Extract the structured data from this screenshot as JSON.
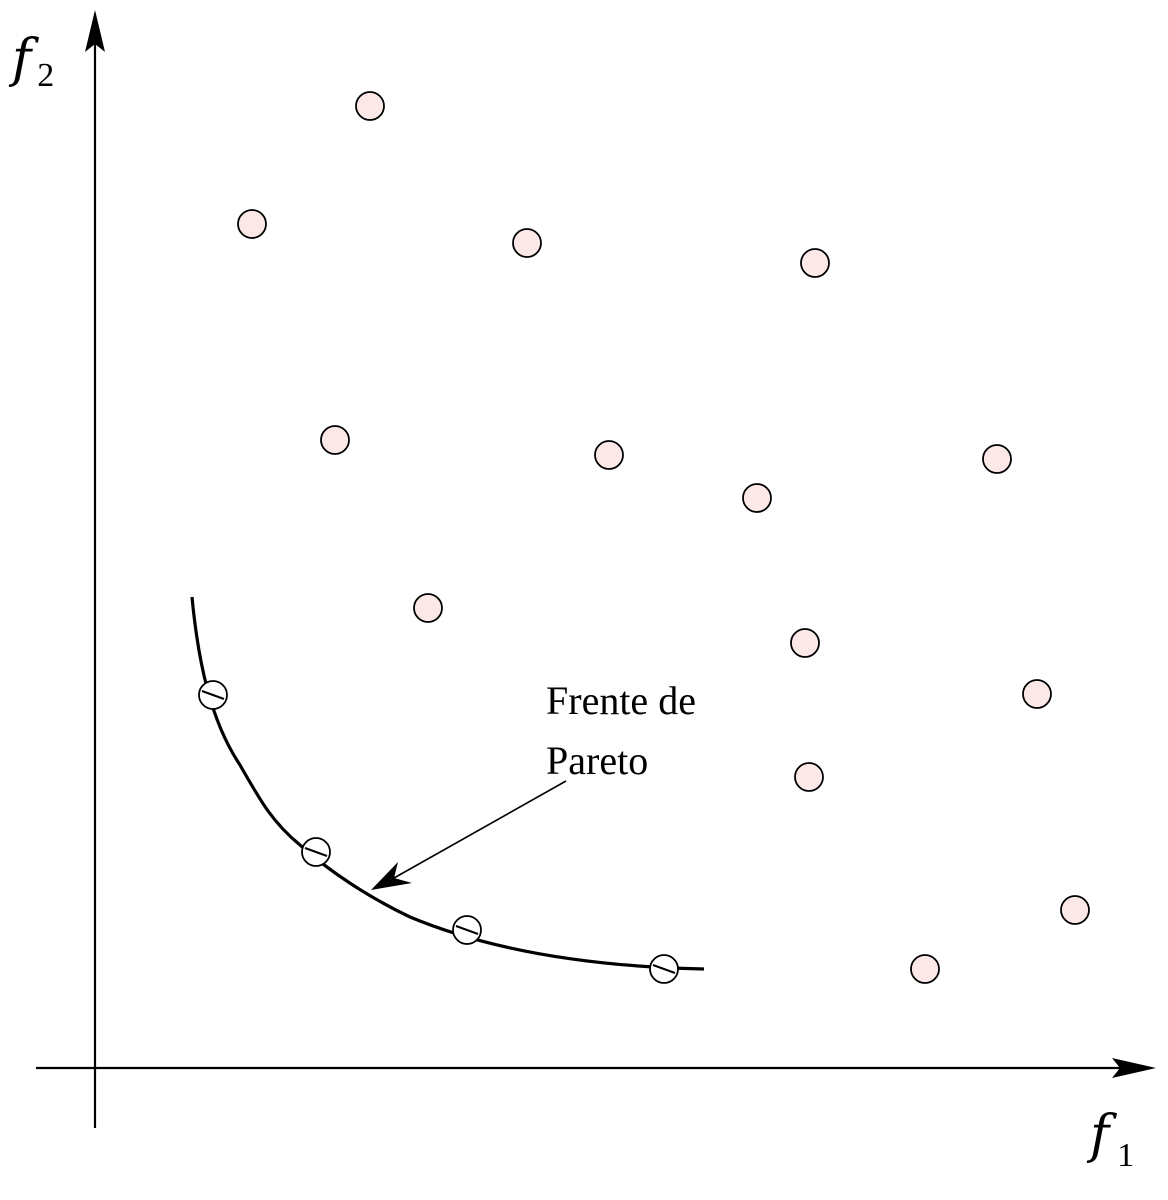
{
  "axes": {
    "x_label": "f",
    "x_subscript": "1",
    "y_label": "f",
    "y_subscript": "2"
  },
  "annotation": {
    "line1": "Frente de",
    "line2": "Pareto"
  },
  "colors": {
    "dominated_fill": "#fde8e8",
    "stroke": "#000000"
  },
  "points": {
    "dominated": [
      {
        "f1": 370,
        "f2": 106
      },
      {
        "f1": 252,
        "f2": 224
      },
      {
        "f1": 527,
        "f2": 243
      },
      {
        "f1": 815,
        "f2": 263
      },
      {
        "f1": 335,
        "f2": 440
      },
      {
        "f1": 609,
        "f2": 455
      },
      {
        "f1": 997,
        "f2": 459
      },
      {
        "f1": 757,
        "f2": 498
      },
      {
        "f1": 428,
        "f2": 608
      },
      {
        "f1": 805,
        "f2": 643
      },
      {
        "f1": 1037,
        "f2": 694
      },
      {
        "f1": 809,
        "f2": 777
      },
      {
        "f1": 1075,
        "f2": 910
      },
      {
        "f1": 925,
        "f2": 969
      }
    ],
    "pareto": [
      {
        "f1": 213,
        "f2": 695
      },
      {
        "f1": 316,
        "f2": 852
      },
      {
        "f1": 467,
        "f2": 930
      },
      {
        "f1": 664,
        "f2": 969
      }
    ]
  }
}
